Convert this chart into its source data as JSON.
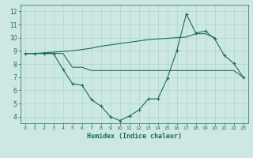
{
  "xlabel": "Humidex (Indice chaleur)",
  "x": [
    0,
    1,
    2,
    3,
    4,
    5,
    6,
    7,
    8,
    9,
    10,
    11,
    12,
    13,
    14,
    15,
    16,
    17,
    18,
    19,
    20,
    21,
    22,
    23
  ],
  "line1": [
    8.8,
    8.8,
    8.85,
    8.9,
    8.95,
    9.0,
    9.1,
    9.2,
    9.35,
    9.45,
    9.55,
    9.65,
    9.75,
    9.85,
    9.9,
    9.95,
    10.0,
    10.05,
    10.3,
    10.3,
    10.0,
    null,
    null,
    null
  ],
  "line2": [
    8.8,
    8.8,
    8.8,
    8.8,
    8.8,
    7.75,
    7.75,
    7.5,
    7.5,
    7.5,
    7.5,
    7.5,
    7.5,
    7.5,
    7.5,
    7.5,
    7.5,
    7.5,
    7.5,
    7.5,
    7.5,
    7.5,
    7.5,
    7.0
  ],
  "line3": [
    8.8,
    8.8,
    8.8,
    8.8,
    7.6,
    6.5,
    6.4,
    5.3,
    4.8,
    4.0,
    3.7,
    4.05,
    4.5,
    5.35,
    5.35,
    6.9,
    9.0,
    11.8,
    10.35,
    10.5,
    9.9,
    8.65,
    8.05,
    7.0
  ],
  "color": "#1a6b5a",
  "bg_color": "#cde8e2",
  "grid_color": "#afd4cc",
  "ylim": [
    3.5,
    12.5
  ],
  "xlim": [
    -0.5,
    23.5
  ],
  "yticks": [
    4,
    5,
    6,
    7,
    8,
    9,
    10,
    11,
    12
  ],
  "xticks": [
    0,
    1,
    2,
    3,
    4,
    5,
    6,
    7,
    8,
    9,
    10,
    11,
    12,
    13,
    14,
    15,
    16,
    17,
    18,
    19,
    20,
    21,
    22,
    23
  ]
}
